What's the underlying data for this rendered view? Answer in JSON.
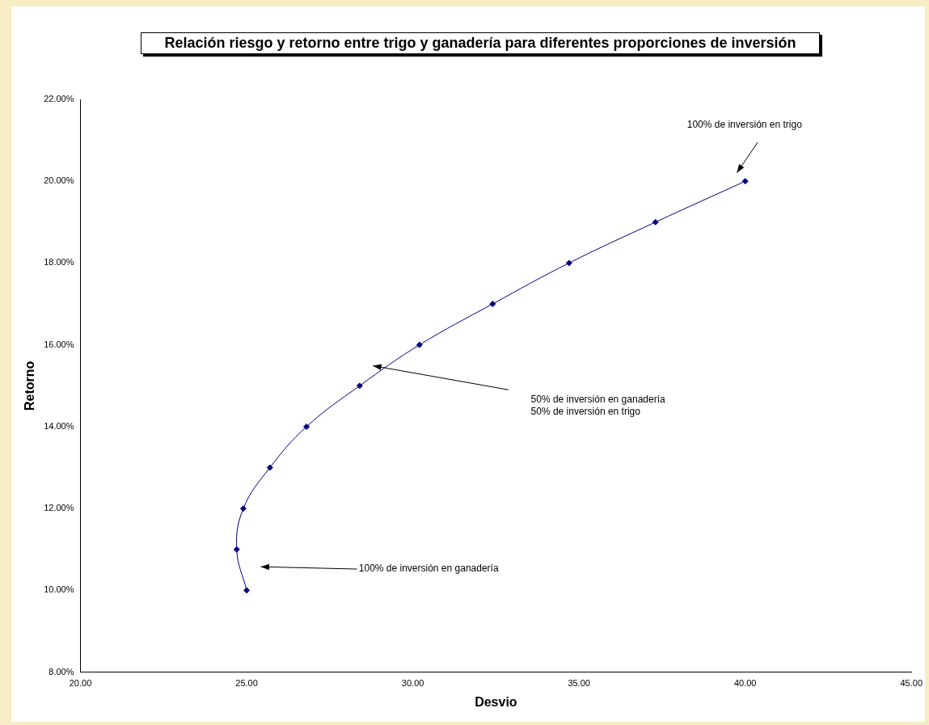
{
  "chart_data": {
    "type": "line",
    "title": "Relación riesgo y retorno entre trigo y ganadería para diferentes proporciones de inversión",
    "xlabel": "Desvio",
    "ylabel": "Retorno",
    "x": [
      25.0,
      24.7,
      24.9,
      25.7,
      26.8,
      28.4,
      30.2,
      32.4,
      34.7,
      37.3,
      40.0
    ],
    "series": [
      {
        "color": "#000080",
        "values": [
          10,
          11,
          12,
          13,
          14,
          15,
          16,
          17,
          18,
          19,
          20
        ]
      }
    ],
    "xlim": [
      20,
      45
    ],
    "xticks": [
      {
        "value": 20,
        "label": "20.00"
      },
      {
        "value": 25,
        "label": "25.00"
      },
      {
        "value": 30,
        "label": "30.00"
      },
      {
        "value": 35,
        "label": "35.00"
      },
      {
        "value": 40,
        "label": "40.00"
      },
      {
        "value": 45,
        "label": "45.00"
      }
    ],
    "ylim": [
      8,
      22
    ],
    "yticks": [
      {
        "value": 8,
        "label": "8.00%"
      },
      {
        "value": 10,
        "label": "10.00%"
      },
      {
        "value": 12,
        "label": "12.00%"
      },
      {
        "value": 14,
        "label": "14.00%"
      },
      {
        "value": 16,
        "label": "16.00%"
      },
      {
        "value": 18,
        "label": "18.00%"
      },
      {
        "value": 20,
        "label": "20.00%"
      },
      {
        "value": 22,
        "label": "22.00%"
      }
    ],
    "annotations": [
      "100% de inversión en trigo",
      "50% de inversión en ganadería\n50% de inversión en trigo",
      "100% de inversión en ganadería"
    ],
    "marker": "diamond",
    "line_style": "solid",
    "grid": false,
    "legend": false
  }
}
